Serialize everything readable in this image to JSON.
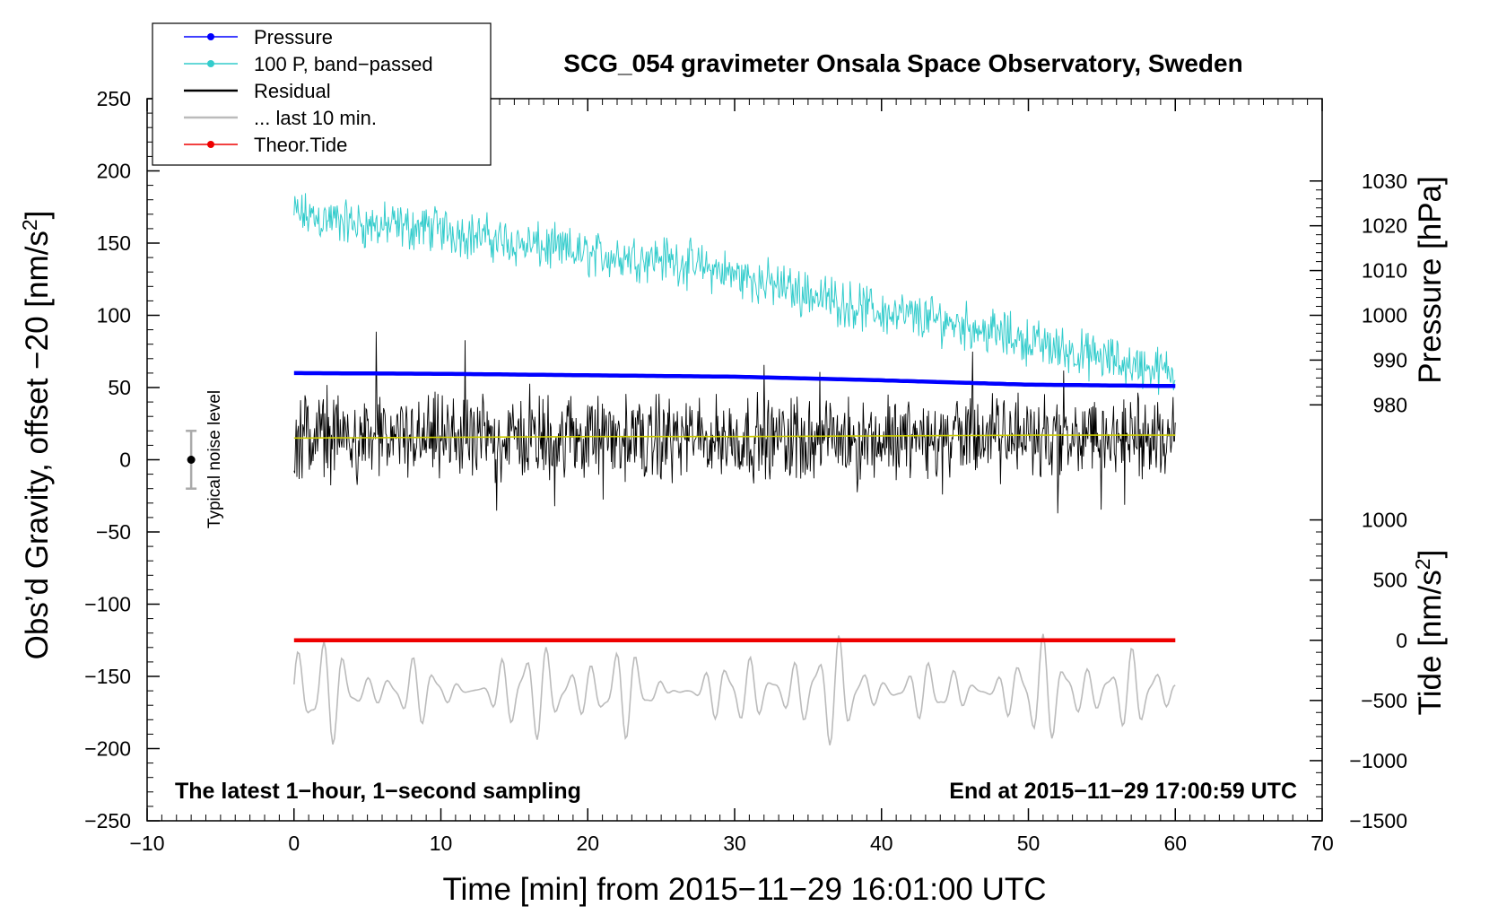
{
  "chart_data": {
    "type": "line",
    "title": "SCG_054 gravimeter Onsala Space Observatory, Sweden",
    "xlabel": "Time [min] from 2015−11−29 16:01:00 UTC",
    "ylabel": "Obs’d Gravity, offset −20 [nm/s",
    "ylabel_sup": "2",
    "ylabel_end": "]",
    "y2_pressure_label": "Pressure [hPa]",
    "y2_tide_label": "Tide [nm/s",
    "y2_tide_sup": "2",
    "y2_tide_end": "]",
    "xlim": [
      -10,
      70
    ],
    "ylim": [
      -250,
      250
    ],
    "x_ticks": [
      -10,
      0,
      10,
      20,
      30,
      40,
      50,
      60,
      70
    ],
    "x_tick_labels": [
      "−10",
      "0",
      "10",
      "20",
      "30",
      "40",
      "50",
      "60",
      "70"
    ],
    "y_ticks": [
      250,
      200,
      150,
      100,
      50,
      0,
      -50,
      -100,
      -150,
      -200,
      -250
    ],
    "y_tick_labels": [
      "250",
      "200",
      "150",
      "100",
      "50",
      "0",
      "−50",
      "−100",
      "−150",
      "−200",
      "−250"
    ],
    "pressure_axis": {
      "ticks": [
        1030,
        1020,
        1010,
        1000,
        990,
        980
      ],
      "tick_labels": [
        "1030",
        "1020",
        "1010",
        "1000",
        "990",
        "980"
      ],
      "map": {
        "value_a": 1000,
        "gravity_a": 100,
        "value_b": 980,
        "gravity_b": 38
      }
    },
    "tide_axis": {
      "ticks": [
        1000,
        500,
        0,
        -500,
        -1000,
        -1500
      ],
      "tick_labels": [
        "1000",
        "500",
        "0",
        "−500",
        "−1000",
        "−1500"
      ],
      "map": {
        "value_a": 0,
        "gravity_a": -125,
        "value_b": -1500,
        "gravity_b": -250
      }
    },
    "series": [
      {
        "name": "Pressure",
        "color": "#0000ff",
        "style": "line-dots",
        "x": [
          0,
          10,
          20,
          30,
          40,
          50,
          60
        ],
        "y": [
          60,
          59.5,
          58.5,
          57.5,
          55,
          52,
          51
        ]
      },
      {
        "name": "100 P, band−passed",
        "color": "#33cccc",
        "style": "line-dots",
        "x": [
          0,
          5,
          10,
          15,
          20,
          25,
          30,
          35,
          40,
          45,
          50,
          55,
          60
        ],
        "y": [
          170,
          162,
          160,
          150,
          142,
          140,
          128,
          115,
          102,
          95,
          82,
          70,
          60
        ],
        "noise_amplitude": 20
      },
      {
        "name": "Residual",
        "color": "#000000",
        "style": "line",
        "x": [
          0,
          60
        ],
        "y": [
          15,
          15
        ],
        "noise_amplitude": 35
      },
      {
        "name": "... last 10 min.",
        "color": "#bbbbbb",
        "style": "line",
        "x": [
          0,
          60
        ],
        "y": [
          -160,
          -160
        ],
        "noise_amplitude": 35
      },
      {
        "name": "Theor.Tide",
        "color": "#ee0000",
        "style": "line-dots",
        "x": [
          0,
          60
        ],
        "y": [
          -125,
          -125
        ]
      },
      {
        "name": "",
        "color": "#cccc00",
        "style": "line",
        "x": [
          0,
          10,
          20,
          30,
          40,
          50,
          60
        ],
        "y": [
          15,
          15.5,
          16,
          16,
          16.5,
          17,
          17
        ]
      }
    ],
    "noise_level": {
      "label": "Typical noise level",
      "x": -7,
      "y": 0,
      "low": -20,
      "high": 20
    },
    "annotations": {
      "left": "The latest 1−hour, 1−second sampling",
      "right": "End at 2015−11−29 17:00:59 UTC"
    },
    "legend": {
      "placement": "top-left",
      "entries": [
        "Pressure",
        "100 P, band−passed",
        "Residual",
        "... last 10 min.",
        "Theor.Tide"
      ]
    }
  }
}
